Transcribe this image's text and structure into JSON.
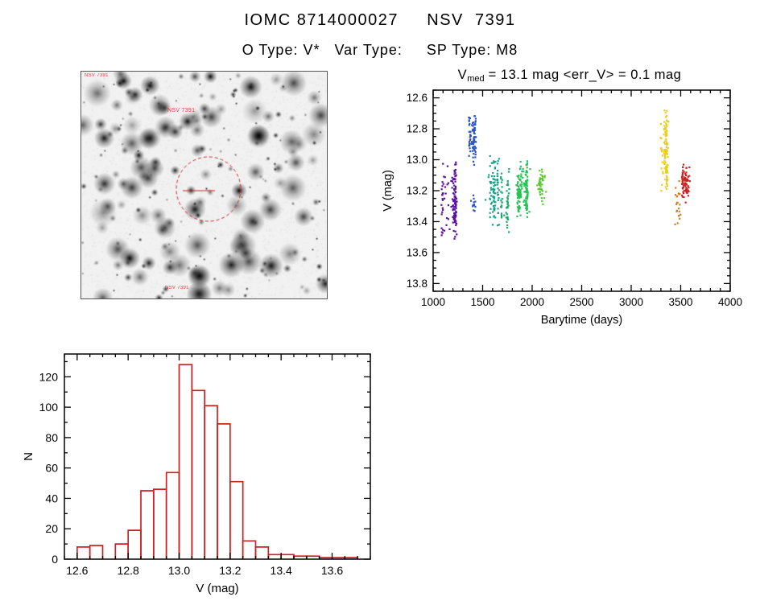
{
  "page": {
    "title": "IOMC 8714000027     NSV  7391",
    "subtitle": "O Type: V*   Var Type:     SP Type: M8"
  },
  "finding_chart": {
    "corner_label": "NSV 7391",
    "target_label": "NSV 7391",
    "bottom_label": "NSV 7391",
    "marker_color": "#cc2222"
  },
  "lightcurve": {
    "title_v": "V",
    "title_sub": "med",
    "title_rest": " = 13.1 mag <err_V> = 0.1 mag"
  },
  "chart_data": [
    {
      "id": "lightcurve",
      "type": "scatter",
      "title": "V_med = 13.1 mag <err_V> = 0.1 mag",
      "xlabel": "Barytime (days)",
      "ylabel": "V (mag)",
      "x_range": [
        1000,
        4000
      ],
      "y_top": 12.55,
      "y_bottom": 13.85,
      "y_inverted": true,
      "xticks": [
        1000,
        1500,
        2000,
        2500,
        3000,
        3500,
        4000
      ],
      "xtick_labels": [
        "1000",
        "1500",
        "2000",
        "2500",
        "3000",
        "3500",
        "4000"
      ],
      "x_minor_step": 100,
      "yticks": [
        12.6,
        12.8,
        13.0,
        13.2,
        13.4,
        13.6,
        13.8
      ],
      "ytick_labels": [
        "12.6",
        "12.8",
        "13.0",
        "13.2",
        "13.4",
        "13.6",
        "13.8"
      ],
      "y_minor_step": 0.05,
      "clusters": [
        {
          "color": "#5a10a0",
          "x_min": 1090,
          "x_max": 1250,
          "columns": 5,
          "y_center": 13.25,
          "y_spread": 0.3,
          "count": 130
        },
        {
          "color": "#2a52c8",
          "x_min": 1360,
          "x_max": 1430,
          "columns": 3,
          "y_center": 12.87,
          "y_spread": 0.17,
          "count": 80
        },
        {
          "color": "#2a52c8",
          "x_min": 1380,
          "x_max": 1440,
          "columns": 2,
          "y_center": 13.27,
          "y_spread": 0.08,
          "count": 12
        },
        {
          "color": "#16a28c",
          "x_min": 1520,
          "x_max": 1670,
          "columns": 4,
          "y_center": 13.2,
          "y_spread": 0.25,
          "count": 90
        },
        {
          "color": "#18ab6e",
          "x_min": 1690,
          "x_max": 1760,
          "columns": 3,
          "y_center": 13.25,
          "y_spread": 0.25,
          "count": 55
        },
        {
          "color": "#28c257",
          "x_min": 1840,
          "x_max": 1980,
          "columns": 6,
          "y_center": 13.2,
          "y_spread": 0.2,
          "count": 170
        },
        {
          "color": "#5ac832",
          "x_min": 2050,
          "x_max": 2140,
          "columns": 3,
          "y_center": 13.17,
          "y_spread": 0.13,
          "count": 45
        },
        {
          "color": "#e8ce1e",
          "x_min": 3290,
          "x_max": 3380,
          "columns": 4,
          "y_center": 12.95,
          "y_spread": 0.33,
          "count": 110
        },
        {
          "color": "#cd7f24",
          "x_min": 3440,
          "x_max": 3500,
          "columns": 3,
          "y_center": 13.27,
          "y_spread": 0.18,
          "count": 22
        },
        {
          "color": "#cc2525",
          "x_min": 3520,
          "x_max": 3600,
          "columns": 4,
          "y_center": 13.15,
          "y_spread": 0.15,
          "count": 75
        }
      ]
    },
    {
      "id": "histogram",
      "type": "bar",
      "xlabel": "V (mag)",
      "ylabel": "N",
      "bin_start": 12.6,
      "bin_width": 0.05,
      "values": [
        8,
        9,
        0,
        10,
        19,
        45,
        46,
        57,
        128,
        111,
        101,
        89,
        51,
        12,
        8,
        3,
        3,
        2,
        2,
        1,
        1,
        1
      ],
      "x_range": [
        12.55,
        13.75
      ],
      "y_range": [
        0,
        135
      ],
      "xticks": [
        12.6,
        12.8,
        13.0,
        13.2,
        13.4,
        13.6
      ],
      "xtick_labels": [
        "12.6",
        "12.8",
        "13.0",
        "13.2",
        "13.4",
        "13.6"
      ],
      "x_minor_step": 0.05,
      "yticks": [
        0,
        20,
        40,
        60,
        80,
        100,
        120
      ],
      "ytick_labels": [
        "0",
        "20",
        "40",
        "60",
        "80",
        "100",
        "120"
      ],
      "y_minor_step": 10,
      "bar_color": "#cc2222"
    }
  ]
}
